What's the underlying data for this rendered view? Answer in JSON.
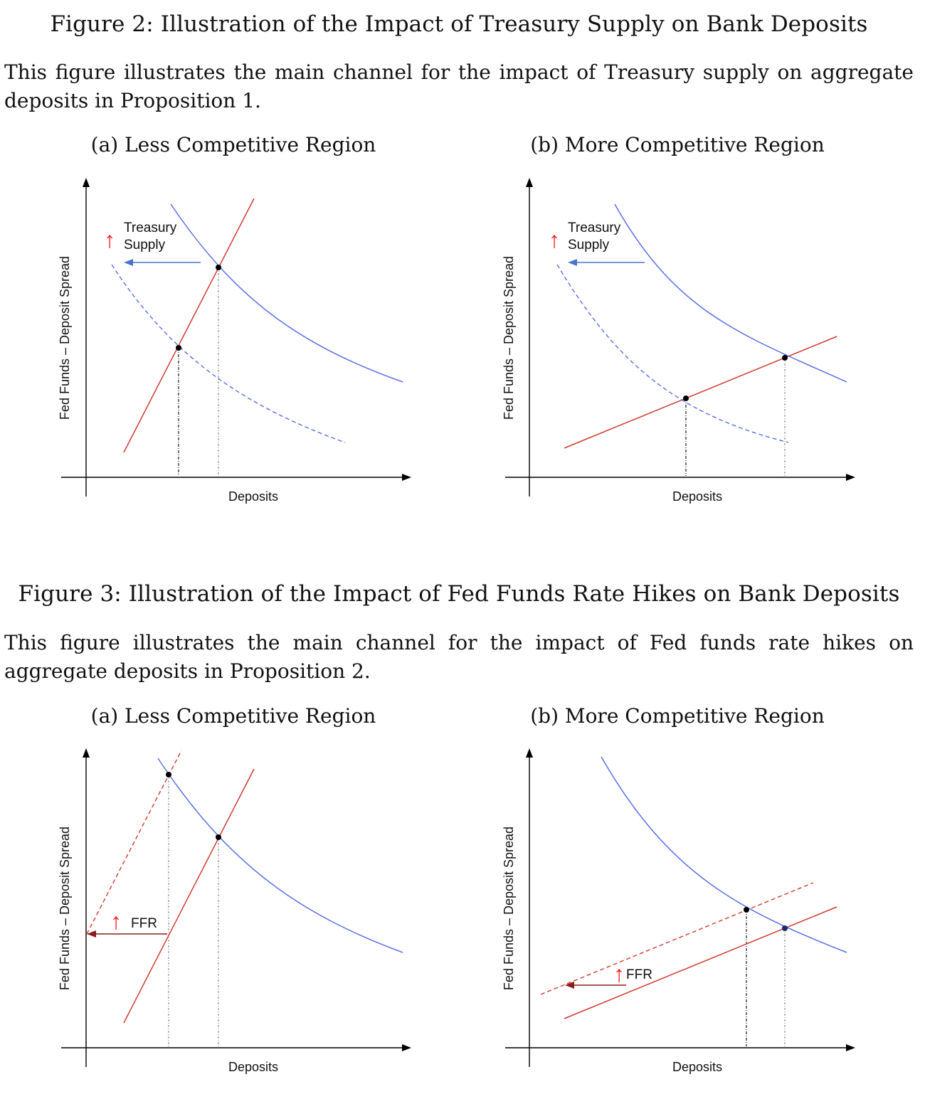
{
  "figure2": {
    "title": "Figure 2: Illustration of the Impact of Treasury Supply on Bank Deposits",
    "caption": "This figure illustrates the main channel for the impact of Treasury supply on aggregate deposits in Proposition 1.",
    "panel_a_title": "(a) Less Competitive Region",
    "panel_b_title": "(b) More Competitive Region",
    "xlabel": "Deposits",
    "ylabel": "Fed Funds – Deposit Spread",
    "annotation_line1": "Treasury",
    "annotation_line2": "Supply",
    "arrow_symbol": "↑"
  },
  "figure3": {
    "title": "Figure 3: Illustration of the Impact of Fed Funds Rate Hikes on Bank Deposits",
    "caption": "This figure illustrates the main channel for the impact of Fed funds rate hikes on aggregate deposits in Proposition 2.",
    "panel_a_title": "(a) Less Competitive Region",
    "panel_b_title": "(b) More Competitive Region",
    "xlabel": "Deposits",
    "ylabel": "Fed Funds – Deposit Spread",
    "annotation": "FFR",
    "arrow_symbol": "↑"
  },
  "colors": {
    "demand_curve": "#5b6ee6",
    "supply_curve": "#d23a32",
    "shift_arrow_blue": "#4a74c9",
    "shift_arrow_red": "#8b1c1c",
    "up_arrow": "#ff1a1a",
    "axis": "#000000"
  }
}
